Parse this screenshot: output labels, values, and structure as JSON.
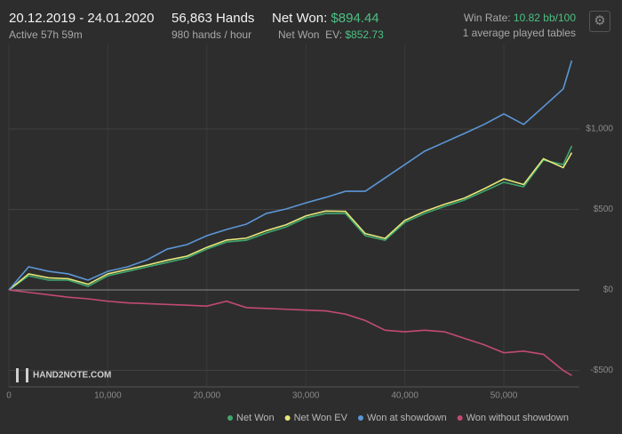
{
  "header": {
    "dates": "20.12.2019 - 24.01.2020",
    "active": "Active 57h 59m",
    "hands": "56,863 Hands",
    "rate": "980 hands / hour",
    "net_won_label": "Net Won:",
    "net_won": "$894.44",
    "net_won_ev_label": "Net Won  EV:",
    "net_won_ev": "$852.73",
    "win_rate_label": "Win Rate:",
    "win_rate": "10.82 bb/100",
    "tables": "1 average played tables",
    "logo": "HAND2NOTE.COM"
  },
  "chart_data": {
    "type": "line",
    "x": [
      0,
      2000,
      4000,
      6000,
      8000,
      10000,
      12000,
      14000,
      16000,
      18000,
      20000,
      22000,
      24000,
      26000,
      28000,
      30000,
      32000,
      34000,
      36000,
      38000,
      40000,
      42000,
      44000,
      46000,
      48000,
      50000,
      52000,
      54000,
      56000,
      56863
    ],
    "series": [
      {
        "name": "Net Won",
        "color": "#3fa86e",
        "values": [
          0,
          88,
          61,
          61,
          22,
          88,
          116,
          144,
          171,
          199,
          254,
          298,
          309,
          354,
          392,
          448,
          475,
          475,
          337,
          309,
          420,
          475,
          519,
          558,
          613,
          669,
          641,
          807,
          779,
          894
        ]
      },
      {
        "name": "Net Won  EV",
        "color": "#e6e87a",
        "values": [
          0,
          100,
          75,
          70,
          35,
          100,
          128,
          155,
          185,
          210,
          265,
          310,
          322,
          368,
          405,
          460,
          490,
          488,
          350,
          320,
          432,
          488,
          532,
          570,
          628,
          690,
          655,
          815,
          760,
          853
        ]
      },
      {
        "name": "Won at showdown",
        "color": "#5b96d6",
        "values": [
          0,
          144,
          116,
          100,
          61,
          116,
          144,
          188,
          254,
          282,
          337,
          376,
          409,
          475,
          503,
          541,
          575,
          613,
          613,
          696,
          779,
          862,
          917,
          972,
          1028,
          1094,
          1028,
          1138,
          1249,
          1425
        ]
      },
      {
        "name": "Won without showdown",
        "color": "#c24a73",
        "values": [
          0,
          -15,
          -30,
          -45,
          -55,
          -70,
          -80,
          -85,
          -90,
          -95,
          -100,
          -70,
          -110,
          -115,
          -120,
          -125,
          -130,
          -150,
          -190,
          -250,
          -260,
          -250,
          -260,
          -300,
          -340,
          -390,
          -380,
          -400,
          -500,
          -531
        ]
      }
    ],
    "xlim": [
      0,
      57000
    ],
    "ylim": [
      -602,
      1525
    ],
    "xticks": [
      0,
      {
        "value": 10000,
        "label": "10,000"
      },
      {
        "value": 20000,
        "label": "20,000"
      },
      {
        "value": 30000,
        "label": "30,000"
      },
      {
        "value": 40000,
        "label": "40,000"
      },
      {
        "value": 50000,
        "label": "50,000"
      }
    ],
    "yticks": [
      {
        "value": -500,
        "label": "-$500"
      },
      {
        "value": 0,
        "label": "$0"
      },
      {
        "value": 500,
        "label": "$500"
      },
      {
        "value": 1000,
        "label": "$1,000"
      }
    ],
    "grid": true,
    "legend": "bottom-right"
  }
}
